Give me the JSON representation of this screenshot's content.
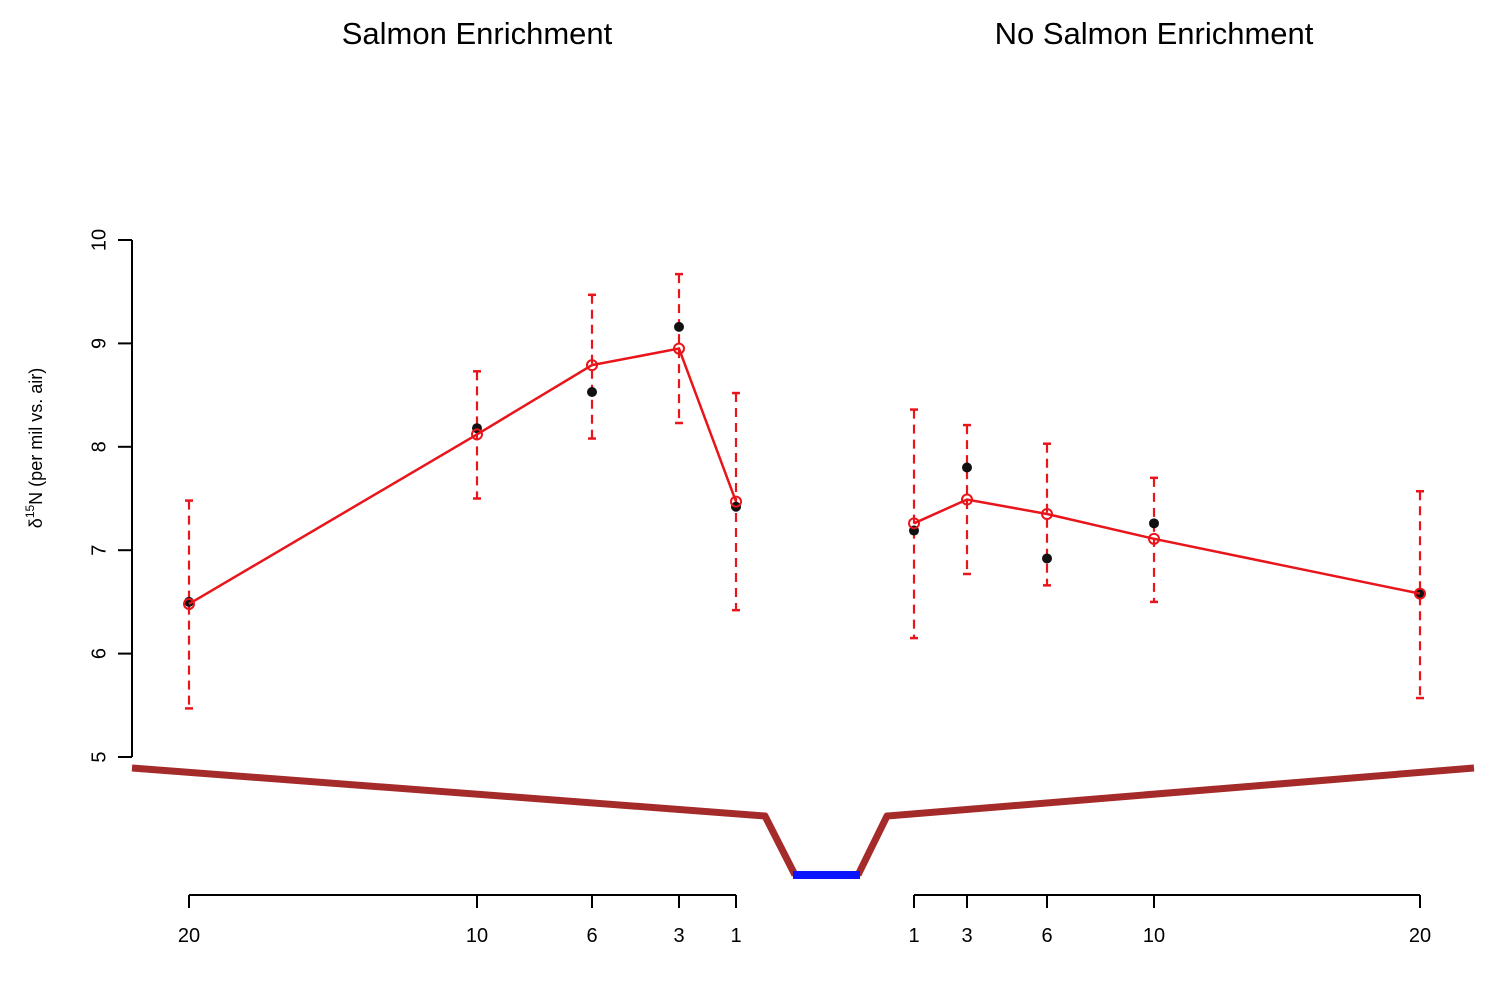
{
  "chart_data": {
    "type": "line",
    "panels": [
      {
        "title": "Salmon Enrichment",
        "x_ticks": [
          "20",
          "10",
          "6",
          "3",
          "1"
        ],
        "observed": [
          6.5,
          8.18,
          8.53,
          9.16,
          7.42
        ],
        "fitted": [
          6.48,
          8.12,
          8.79,
          8.95,
          7.47
        ],
        "error_low": [
          5.47,
          7.5,
          8.08,
          8.23,
          6.42
        ],
        "error_high": [
          7.48,
          8.73,
          9.47,
          9.67,
          8.52
        ]
      },
      {
        "title": "No Salmon Enrichment",
        "x_ticks": [
          "1",
          "3",
          "6",
          "10",
          "20"
        ],
        "observed": [
          7.19,
          7.8,
          6.92,
          7.26,
          6.58
        ],
        "fitted": [
          7.26,
          7.49,
          7.35,
          7.11,
          6.58
        ],
        "error_low": [
          6.15,
          6.77,
          6.66,
          6.5,
          5.57
        ],
        "error_high": [
          8.36,
          8.21,
          8.03,
          7.7,
          7.57
        ]
      }
    ],
    "ylabel_prefix": "δ",
    "ylabel_sup": "15",
    "ylabel_rest": "N (per mil vs. air)",
    "y_ticks": [
      "5",
      "6",
      "7",
      "8",
      "9",
      "10"
    ],
    "ylim": [
      5,
      10
    ],
    "grid": false,
    "colors": {
      "observed": "#111111",
      "fitted": "#e8151b",
      "error": "#e8151b",
      "bank": "#a52a2a",
      "stream": "#0a14ff"
    }
  }
}
